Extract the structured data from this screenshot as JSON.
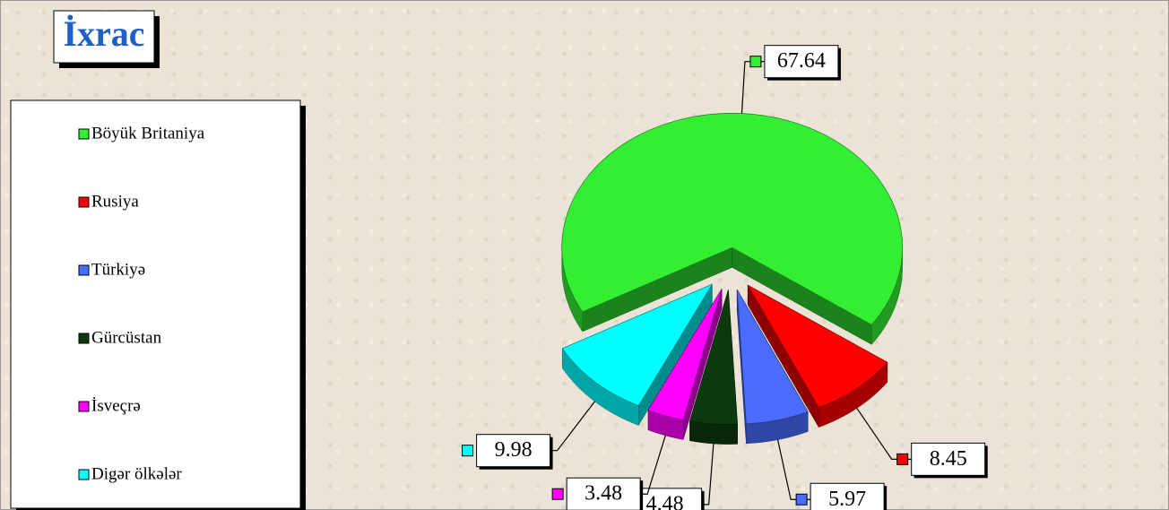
{
  "chart_data": {
    "type": "pie",
    "title": "İxrac",
    "categories": [
      "Böyük Britaniya",
      "Rusiya",
      "Türkiyə",
      "Gürcüstan",
      "İsveçrə",
      "Digər ölkələr"
    ],
    "values": [
      67.64,
      8.45,
      5.97,
      4.48,
      3.48,
      9.98
    ],
    "colors": [
      "#33ee33",
      "#ff0000",
      "#4a6cff",
      "#0c3a0c",
      "#ff00ff",
      "#00ffff"
    ],
    "legend": "left"
  }
}
